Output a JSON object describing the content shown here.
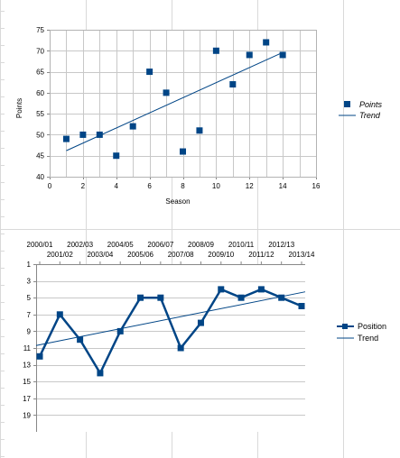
{
  "colors": {
    "series": "#004586",
    "grid": "#c8c8c8",
    "sheet_grid": "#d9d9d9"
  },
  "chart_data": [
    {
      "type": "scatter",
      "title": "",
      "xlabel": "Season",
      "ylabel": "Points",
      "xlim": [
        0,
        16
      ],
      "ylim": [
        40,
        75
      ],
      "x_ticks": [
        0,
        2,
        4,
        6,
        8,
        10,
        12,
        14,
        16
      ],
      "y_ticks": [
        40,
        45,
        50,
        55,
        60,
        65,
        70,
        75
      ],
      "grid": true,
      "legend_position": "right",
      "series": [
        {
          "name": "Points",
          "marker": "square",
          "x": [
            1,
            2,
            3,
            4,
            5,
            6,
            7,
            8,
            9,
            10,
            11,
            12,
            13,
            14
          ],
          "y": [
            49,
            50,
            50,
            45,
            52,
            65,
            60,
            46,
            51,
            70,
            62,
            69,
            72,
            69
          ]
        }
      ],
      "trendline": {
        "name": "Trend",
        "x": [
          1,
          14
        ],
        "y": [
          46.2,
          69.6
        ]
      }
    },
    {
      "type": "line",
      "title": "",
      "xlabel": "",
      "ylabel": "",
      "categories": [
        "2000/01",
        "2001/02",
        "2002/03",
        "2003/04",
        "2004/05",
        "2005/06",
        "2006/07",
        "2007/08",
        "2008/09",
        "2009/10",
        "2010/11",
        "2011/12",
        "2012/13",
        "2013/14"
      ],
      "ylim": [
        1,
        21
      ],
      "y_reversed": true,
      "y_ticks": [
        1,
        3,
        5,
        7,
        9,
        11,
        13,
        15,
        17,
        19
      ],
      "x_axis_position": "top",
      "grid": true,
      "legend_position": "right",
      "series": [
        {
          "name": "Position",
          "marker": "square",
          "values": [
            12,
            7,
            10,
            14,
            9,
            5,
            5,
            11,
            8,
            4,
            5,
            4,
            5,
            6
          ]
        }
      ],
      "trendline": {
        "name": "Trend",
        "values_at_ends": [
          10.7,
          4.3
        ]
      }
    }
  ]
}
